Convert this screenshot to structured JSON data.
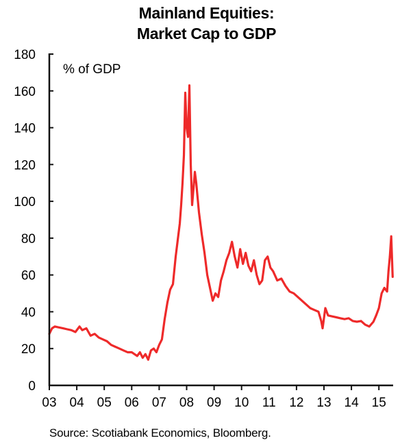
{
  "chart_data": {
    "type": "line",
    "title": "Mainland Equities:",
    "subtitle": "Market Cap to GDP",
    "xlabel": "",
    "ylabel": "% of GDP",
    "ylim": [
      0,
      180
    ],
    "xlim": [
      2003,
      2015.5
    ],
    "y_ticks": [
      "0",
      "20",
      "40",
      "60",
      "80",
      "100",
      "120",
      "140",
      "160",
      "180"
    ],
    "y_tick_values": [
      0,
      20,
      40,
      60,
      80,
      100,
      120,
      140,
      160,
      180
    ],
    "x_ticks": [
      "03",
      "04",
      "05",
      "06",
      "07",
      "08",
      "09",
      "10",
      "11",
      "12",
      "13",
      "14",
      "15"
    ],
    "x_tick_values": [
      2003,
      2004,
      2005,
      2006,
      2007,
      2008,
      2009,
      2010,
      2011,
      2012,
      2013,
      2014,
      2015
    ],
    "grid": false,
    "legend": "none",
    "series": [
      {
        "name": "Market Cap to GDP",
        "color": "#ee2a2a",
        "x": [
          2003.0,
          2003.1,
          2003.2,
          2003.35,
          2003.5,
          2003.65,
          2003.8,
          2003.95,
          2004.1,
          2004.2,
          2004.35,
          2004.5,
          2004.65,
          2004.8,
          2004.95,
          2005.1,
          2005.25,
          2005.4,
          2005.55,
          2005.7,
          2005.85,
          2006.0,
          2006.1,
          2006.2,
          2006.3,
          2006.4,
          2006.5,
          2006.6,
          2006.7,
          2006.8,
          2006.9,
          2007.0,
          2007.1,
          2007.2,
          2007.3,
          2007.4,
          2007.5,
          2007.6,
          2007.7,
          2007.75,
          2007.8,
          2007.85,
          2007.9,
          2007.95,
          2008.0,
          2008.05,
          2008.1,
          2008.15,
          2008.2,
          2008.3,
          2008.35,
          2008.45,
          2008.55,
          2008.65,
          2008.75,
          2008.85,
          2008.95,
          2009.05,
          2009.15,
          2009.25,
          2009.35,
          2009.45,
          2009.55,
          2009.65,
          2009.75,
          2009.85,
          2009.95,
          2010.05,
          2010.15,
          2010.25,
          2010.35,
          2010.45,
          2010.55,
          2010.65,
          2010.75,
          2010.85,
          2010.95,
          2011.05,
          2011.15,
          2011.3,
          2011.45,
          2011.6,
          2011.75,
          2011.9,
          2012.05,
          2012.2,
          2012.35,
          2012.5,
          2012.65,
          2012.8,
          2012.9,
          2012.95,
          2013.05,
          2013.15,
          2013.3,
          2013.45,
          2013.6,
          2013.75,
          2013.9,
          2014.05,
          2014.2,
          2014.35,
          2014.5,
          2014.65,
          2014.8,
          2014.9,
          2015.0,
          2015.1,
          2015.2,
          2015.3,
          2015.35,
          2015.4,
          2015.45,
          2015.5
        ],
        "y": [
          28,
          31,
          32,
          31.5,
          31,
          30.5,
          30,
          29,
          32,
          30,
          31,
          27,
          28,
          26,
          25,
          24,
          22,
          21,
          20,
          19,
          18,
          18,
          17,
          16,
          18,
          15,
          17,
          14,
          19,
          20,
          18,
          22,
          25,
          36,
          45,
          52,
          55,
          70,
          82,
          88,
          98,
          110,
          125,
          159,
          140,
          135,
          163,
          120,
          98,
          116,
          110,
          94,
          82,
          72,
          60,
          53,
          46,
          50,
          48,
          57,
          62,
          68,
          72,
          78,
          70,
          64,
          74,
          66,
          72,
          65,
          62,
          68,
          60,
          55,
          57,
          68,
          70,
          64,
          62,
          57,
          58,
          54,
          51,
          50,
          48,
          46,
          44,
          42,
          41,
          40,
          35,
          31,
          42,
          38,
          37.5,
          37,
          36.5,
          36,
          36.5,
          35,
          34.6,
          35,
          33,
          32,
          34.6,
          38,
          42,
          50,
          53,
          51,
          62,
          70,
          81,
          59
        ]
      }
    ]
  },
  "footer": {
    "source": "Source: Scotiabank Economics, Bloomberg."
  }
}
